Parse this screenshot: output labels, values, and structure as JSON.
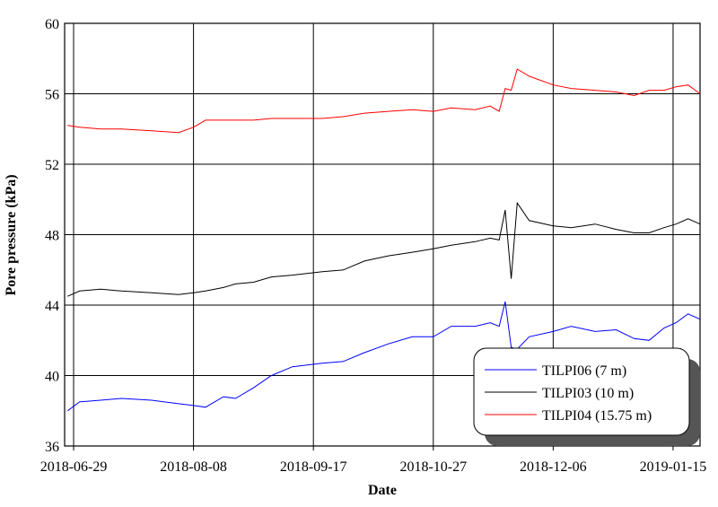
{
  "chart_data": {
    "type": "line",
    "x_label": "Date",
    "y_label": "Pore pressure (kPa)",
    "x": [
      "2018-06-27",
      "2018-07-01",
      "2018-07-08",
      "2018-07-15",
      "2018-07-25",
      "2018-08-03",
      "2018-08-08",
      "2018-08-12",
      "2018-08-18",
      "2018-08-22",
      "2018-08-28",
      "2018-09-03",
      "2018-09-10",
      "2018-09-20",
      "2018-09-27",
      "2018-10-04",
      "2018-10-12",
      "2018-10-20",
      "2018-10-27",
      "2018-11-02",
      "2018-11-10",
      "2018-11-15",
      "2018-11-18",
      "2018-11-20",
      "2018-11-22",
      "2018-11-24",
      "2018-11-28",
      "2018-12-06",
      "2018-12-12",
      "2018-12-20",
      "2018-12-27",
      "2019-01-02",
      "2019-01-07",
      "2019-01-12",
      "2019-01-16",
      "2019-01-20",
      "2019-01-24"
    ],
    "series": [
      {
        "name": "TILPI06 (7 m)",
        "color": "#0000ff",
        "values": [
          38.0,
          38.5,
          38.6,
          38.7,
          38.6,
          38.4,
          38.3,
          38.2,
          38.8,
          38.7,
          39.3,
          40.0,
          40.5,
          40.7,
          40.8,
          41.3,
          41.8,
          42.2,
          42.2,
          42.8,
          42.8,
          43.0,
          42.8,
          44.2,
          41.6,
          41.5,
          42.2,
          42.5,
          42.8,
          42.5,
          42.6,
          42.1,
          42.0,
          42.7,
          43.0,
          43.5,
          43.2
        ]
      },
      {
        "name": "TILPI03 (10 m)",
        "color": "#000000",
        "values": [
          44.5,
          44.8,
          44.9,
          44.8,
          44.7,
          44.6,
          44.7,
          44.8,
          45.0,
          45.2,
          45.3,
          45.6,
          45.7,
          45.9,
          46.0,
          46.5,
          46.8,
          47.0,
          47.2,
          47.4,
          47.6,
          47.8,
          47.7,
          49.4,
          45.5,
          49.8,
          48.8,
          48.5,
          48.4,
          48.6,
          48.3,
          48.1,
          48.1,
          48.4,
          48.6,
          48.9,
          48.6
        ]
      },
      {
        "name": "TILPI04 (15.75 m)",
        "color": "#ff0000",
        "values": [
          54.2,
          54.1,
          54.0,
          54.0,
          53.9,
          53.8,
          54.1,
          54.5,
          54.5,
          54.5,
          54.5,
          54.6,
          54.6,
          54.6,
          54.7,
          54.9,
          55.0,
          55.1,
          55.0,
          55.2,
          55.1,
          55.3,
          55.0,
          56.3,
          56.2,
          57.4,
          57.0,
          56.5,
          56.3,
          56.2,
          56.1,
          55.9,
          56.2,
          56.2,
          56.4,
          56.5,
          56.0
        ]
      }
    ],
    "xlim": [
      "2018-06-26",
      "2019-01-24"
    ],
    "xticks": [
      "2018-06-29",
      "2018-08-08",
      "2018-09-17",
      "2018-10-27",
      "2018-12-06",
      "2019-01-15"
    ],
    "ylim": [
      36,
      60
    ],
    "yticks": [
      36,
      40,
      44,
      48,
      52,
      56,
      60
    ],
    "grid": true,
    "legend": "lower right"
  }
}
